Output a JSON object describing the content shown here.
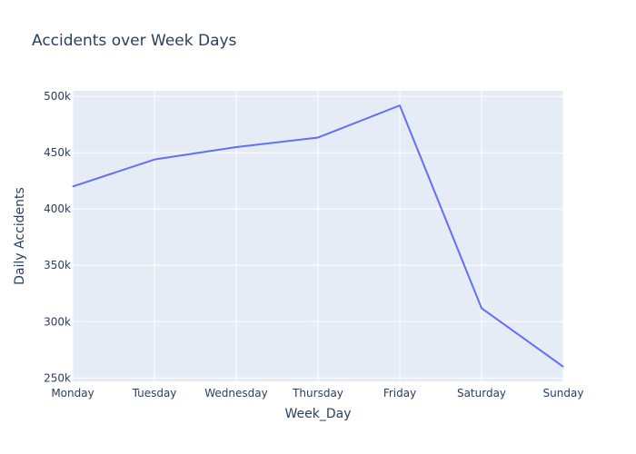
{
  "chart_data": {
    "type": "line",
    "title": "Accidents over Week Days",
    "xlabel": "Week_Day",
    "ylabel": "Daily Accidents",
    "categories": [
      "Monday",
      "Tuesday",
      "Wednesday",
      "Thursday",
      "Friday",
      "Saturday",
      "Sunday"
    ],
    "series": [
      {
        "values": [
          420000,
          444000,
          455000,
          463500,
          492000,
          312000,
          260000
        ]
      }
    ],
    "ylim": [
      247000,
      505000
    ],
    "yticks": [
      250000,
      300000,
      350000,
      400000,
      450000,
      500000
    ],
    "ytick_labels": [
      "250k",
      "300k",
      "350k",
      "400k",
      "450k",
      "500k"
    ],
    "grid": true,
    "colors": {
      "line": "#636efa",
      "plot_bg": "#e5ecf6",
      "grid": "#ffffff",
      "text": "#2a3f5f"
    }
  }
}
